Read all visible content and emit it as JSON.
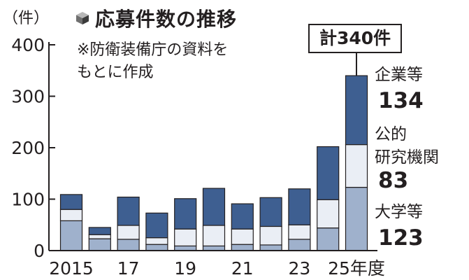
{
  "header": {
    "title": "応募件数の推移",
    "note_line1": "※防衛装備庁の資料を",
    "note_line2": "もとに作成",
    "unit": "（件）"
  },
  "annotation": {
    "total": "計340件"
  },
  "segment_labels": {
    "companies": "企業等",
    "companies_value": "134",
    "public_line1": "公的",
    "public_line2": "研究機関",
    "public_value": "83",
    "universities": "大学等",
    "universities_value": "123"
  },
  "colors": {
    "companies": "#3e5f91",
    "public": "#eaeef5",
    "universities": "#9fb1cc",
    "ink": "#231f20"
  },
  "chart_data": {
    "type": "bar",
    "stacked": true,
    "categories": [
      "2015",
      "16",
      "17",
      "18",
      "19",
      "20",
      "21",
      "22",
      "23",
      "24",
      "25"
    ],
    "x_tick_labels": [
      "2015",
      "",
      "17",
      "",
      "19",
      "",
      "21",
      "",
      "23",
      "",
      "25年度"
    ],
    "series": [
      {
        "name": "大学等",
        "values": [
          58,
          23,
          22,
          12,
          9,
          9,
          12,
          11,
          22,
          44,
          123
        ]
      },
      {
        "name": "公的研究機関",
        "values": [
          22,
          8,
          27,
          13,
          33,
          40,
          30,
          36,
          28,
          55,
          83
        ]
      },
      {
        "name": "企業等",
        "values": [
          29,
          14,
          55,
          48,
          59,
          72,
          49,
          56,
          70,
          103,
          134
        ]
      }
    ],
    "y_ticks": [
      0,
      100,
      200,
      300,
      400
    ],
    "ylim": [
      0,
      400
    ],
    "ylabel": "（件）",
    "title": "応募件数の推移",
    "grid": false,
    "legend": "labels at right of last bar"
  }
}
